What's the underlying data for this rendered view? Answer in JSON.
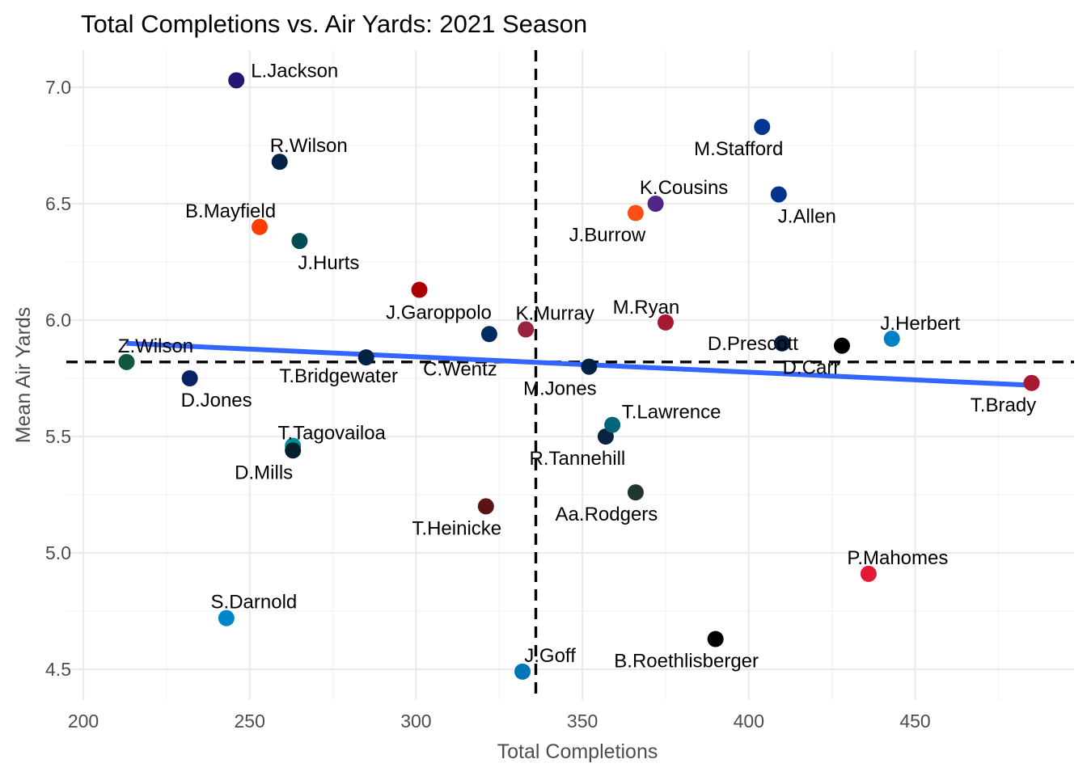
{
  "chart_data": {
    "type": "scatter",
    "title": "Total Completions vs. Air Yards: 2021 Season",
    "xlabel": "Total Completions",
    "ylabel": "Mean Air Yards",
    "xlim": [
      199,
      496
    ],
    "ylim": [
      4.36,
      7.2
    ],
    "x_ticks": [
      200,
      250,
      300,
      350,
      400,
      450
    ],
    "y_ticks": [
      4.5,
      5.0,
      5.5,
      6.0,
      6.5,
      7.0
    ],
    "y_tick_labels": [
      "4.5",
      "5.0",
      "5.5",
      "6.0",
      "6.5",
      "7.0"
    ],
    "grid": true,
    "mean_x": 336,
    "mean_y": 5.82,
    "trend": {
      "x": [
        213,
        485
      ],
      "y": [
        5.9,
        5.72
      ],
      "color": "#3366ff"
    },
    "points": [
      {
        "name": "L.Jackson",
        "x": 246,
        "y": 7.03,
        "color": "#241773"
      },
      {
        "name": "R.Wilson",
        "x": 259,
        "y": 6.68,
        "color": "#002244"
      },
      {
        "name": "B.Mayfield",
        "x": 253,
        "y": 6.4,
        "color": "#FF3C00"
      },
      {
        "name": "J.Hurts",
        "x": 265,
        "y": 6.34,
        "color": "#004C54"
      },
      {
        "name": "J.Garoppolo",
        "x": 301,
        "y": 6.13,
        "color": "#AA0000"
      },
      {
        "name": "K.Murray",
        "x": 333,
        "y": 5.96,
        "color": "#97233F"
      },
      {
        "name": "C.Wentz",
        "x": 322,
        "y": 5.94,
        "color": "#002C5F"
      },
      {
        "name": "Z.Wilson",
        "x": 213,
        "y": 5.82,
        "color": "#125740"
      },
      {
        "name": "D.Jones",
        "x": 232,
        "y": 5.75,
        "color": "#0B2265"
      },
      {
        "name": "T.Bridgewater",
        "x": 285,
        "y": 5.84,
        "color": "#002244"
      },
      {
        "name": "T.Tagovailoa",
        "x": 263,
        "y": 5.46,
        "color": "#008E97"
      },
      {
        "name": "D.Mills",
        "x": 263,
        "y": 5.44,
        "color": "#03202F"
      },
      {
        "name": "T.Heinicke",
        "x": 321,
        "y": 5.2,
        "color": "#5A1414"
      },
      {
        "name": "S.Darnold",
        "x": 243,
        "y": 4.72,
        "color": "#0085CA"
      },
      {
        "name": "J.Goff",
        "x": 332,
        "y": 4.49,
        "color": "#0076B6"
      },
      {
        "name": "M.Jones",
        "x": 352,
        "y": 5.8,
        "color": "#002244"
      },
      {
        "name": "R.Tannehill",
        "x": 357,
        "y": 5.5,
        "color": "#0C2340"
      },
      {
        "name": "T.Lawrence",
        "x": 359,
        "y": 5.55,
        "color": "#006778"
      },
      {
        "name": "Aa.Rodgers",
        "x": 366,
        "y": 5.26,
        "color": "#203731"
      },
      {
        "name": "J.Burrow",
        "x": 366,
        "y": 6.46,
        "color": "#FB4F14"
      },
      {
        "name": "K.Cousins",
        "x": 372,
        "y": 6.5,
        "color": "#4F2683"
      },
      {
        "name": "M.Ryan",
        "x": 375,
        "y": 5.99,
        "color": "#A71930"
      },
      {
        "name": "M.Stafford",
        "x": 404,
        "y": 6.83,
        "color": "#003594"
      },
      {
        "name": "J.Allen",
        "x": 409,
        "y": 6.54,
        "color": "#00338D"
      },
      {
        "name": "D.Prescott",
        "x": 410,
        "y": 5.9,
        "color": "#041E42"
      },
      {
        "name": "D.Carr",
        "x": 428,
        "y": 5.89,
        "color": "#000000"
      },
      {
        "name": "J.Herbert",
        "x": 443,
        "y": 5.92,
        "color": "#0080C6"
      },
      {
        "name": "T.Brady",
        "x": 485,
        "y": 5.73,
        "color": "#A71930"
      },
      {
        "name": "P.Mahomes",
        "x": 436,
        "y": 4.91,
        "color": "#E31837"
      },
      {
        "name": "B.Roethlisberger",
        "x": 390,
        "y": 4.63,
        "color": "#000000"
      }
    ]
  }
}
